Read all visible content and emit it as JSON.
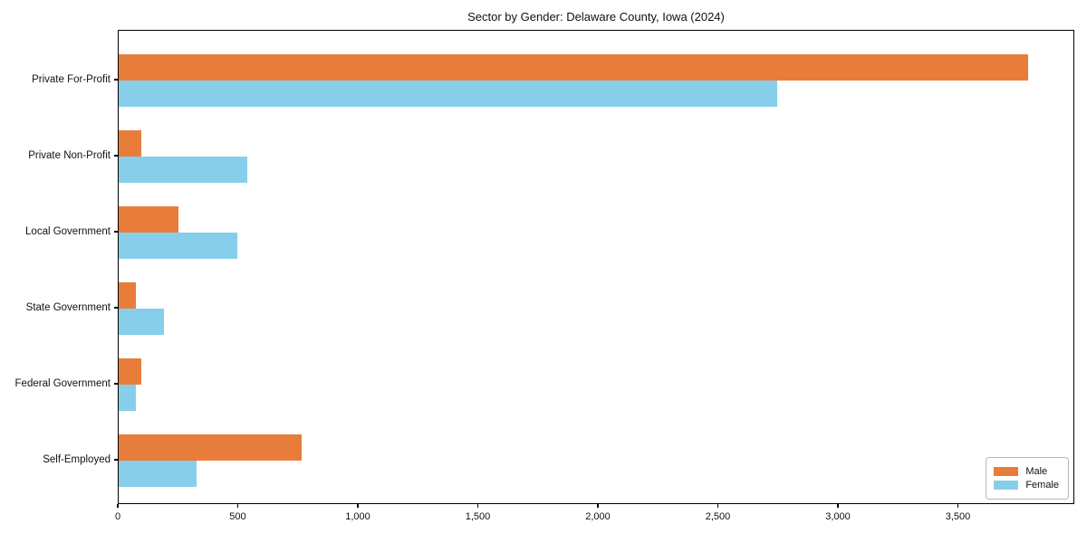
{
  "figure": {
    "background": "#ffffff",
    "frame_color": "#000000"
  },
  "chart_data": {
    "type": "bar",
    "orientation": "horizontal",
    "title": "Sector by Gender: Delaware County, Iowa (2024)",
    "xlabel": "",
    "ylabel": "",
    "categories": [
      "Private For-Profit",
      "Private Non-Profit",
      "Local Government",
      "State Government",
      "Federal Government",
      "Self-Employed"
    ],
    "series": [
      {
        "name": "Male",
        "color": "#e87d3b",
        "values": [
          3795,
          95,
          250,
          70,
          95,
          765
        ]
      },
      {
        "name": "Female",
        "color": "#87ceeb",
        "values": [
          2750,
          535,
          495,
          190,
          70,
          325
        ]
      }
    ],
    "xlim": [
      0,
      3985
    ],
    "xticks": [
      0,
      500,
      1000,
      1500,
      2000,
      2500,
      3000,
      3500
    ],
    "xtick_labels": [
      "0",
      "500",
      "1,000",
      "1,500",
      "2,000",
      "2,500",
      "3,000",
      "3,500"
    ],
    "legend_position": "lower right",
    "grid": false
  }
}
